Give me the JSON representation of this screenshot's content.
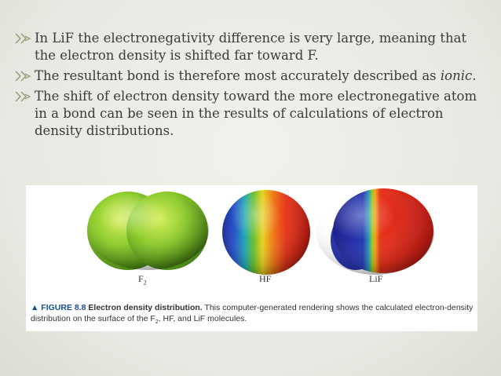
{
  "bullets": [
    {
      "icon": "double-arrow-bullet-icon",
      "text": "In LiF the electronegativity difference is very large, meaning that the electron density is shifted far toward F."
    },
    {
      "icon": "double-arrow-bullet-icon",
      "text_before": "The resultant bond is therefore most accurately described as ",
      "text_italic": "ionic",
      "text_after": "."
    },
    {
      "icon": "double-arrow-bullet-icon",
      "text": "The shift of electron density toward the more electronegative atom in a bond can be seen in the results of calculations of electron density distributions."
    }
  ],
  "figure": {
    "molecules": {
      "f2": {
        "label_main": "F",
        "label_sub": "2"
      },
      "hf": {
        "label": "HF"
      },
      "lif": {
        "label": "LiF"
      }
    },
    "caption": {
      "number": "▲ FIGURE 8.8",
      "title": "Electron density distribution.",
      "text_before_sub": " This computer-generated rendering shows the calculated electron-density distribution on the surface of the F",
      "sub": "2",
      "text_after_sub": ", HF, and LiF molecules."
    }
  },
  "colors": {
    "bullet": "#8c9870",
    "caption_figure": "#1a4f8f"
  }
}
